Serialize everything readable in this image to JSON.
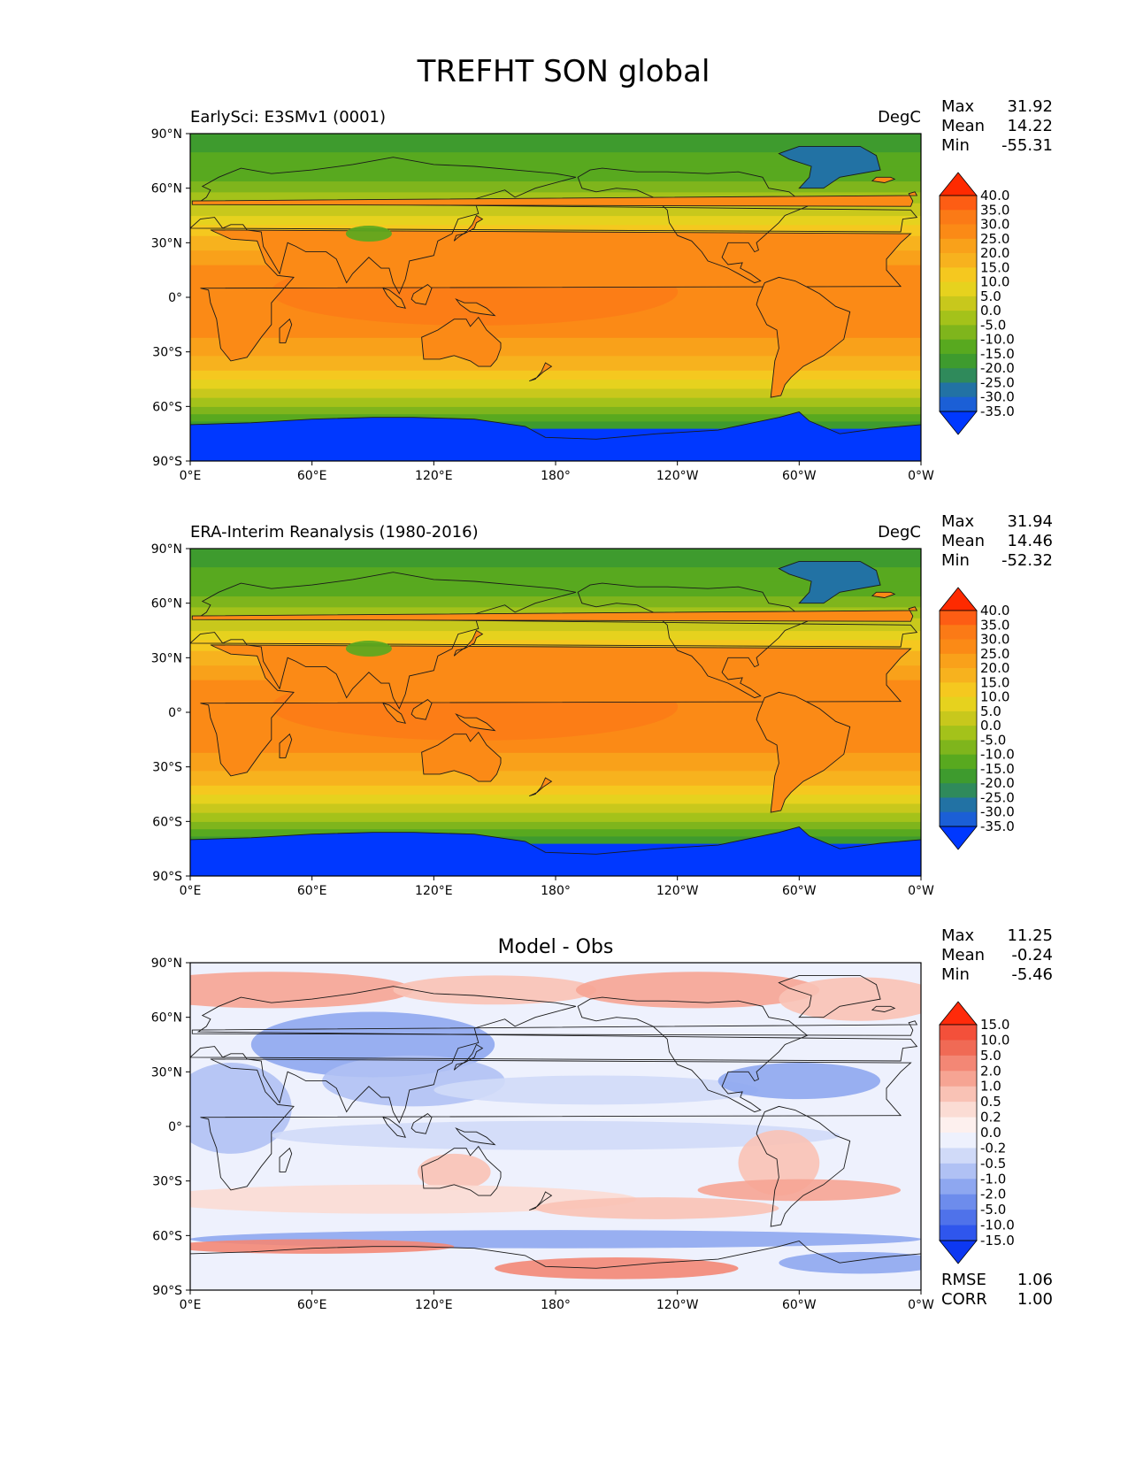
{
  "figure_title": "TREFHT SON global",
  "axes": {
    "lat_ticks": [
      "90°N",
      "60°N",
      "30°N",
      "0°",
      "30°S",
      "60°S",
      "90°S"
    ],
    "lon_ticks": [
      "0°E",
      "60°E",
      "120°E",
      "180°",
      "120°W",
      "60°W",
      "0°W"
    ]
  },
  "panels": [
    {
      "left_title": "EarlySci: E3SMv1 (0001)",
      "right_title": "DegC",
      "center_title": "",
      "stats": [
        {
          "label": "Max",
          "value": "31.92"
        },
        {
          "label": "Mean",
          "value": "14.22"
        },
        {
          "label": "Min",
          "value": "-55.31"
        }
      ]
    },
    {
      "left_title": "ERA-Interim Reanalysis (1980-2016)",
      "right_title": "DegC",
      "center_title": "",
      "stats": [
        {
          "label": "Max",
          "value": "31.94"
        },
        {
          "label": "Mean",
          "value": "14.46"
        },
        {
          "label": "Min",
          "value": "-52.32"
        }
      ]
    },
    {
      "left_title": "",
      "right_title": "",
      "center_title": "Model - Obs",
      "stats": [
        {
          "label": "Max",
          "value": "11.25"
        },
        {
          "label": "Mean",
          "value": "-0.24"
        },
        {
          "label": "Min",
          "value": "-5.46"
        }
      ],
      "extra_stats": [
        {
          "label": "RMSE",
          "value": "1.06"
        },
        {
          "label": "CORR",
          "value": "1.00"
        }
      ]
    }
  ],
  "chart_data": [
    {
      "type": "heatmap",
      "title": "EarlySci: E3SMv1 (0001)",
      "units": "DegC",
      "variable": "TREFHT",
      "season": "SON",
      "x_range": [
        0,
        360
      ],
      "y_range": [
        -90,
        90
      ],
      "colorbar": {
        "levels": [
          "40.0",
          "35.0",
          "30.0",
          "25.0",
          "20.0",
          "15.0",
          "10.0",
          "5.0",
          "0.0",
          "-5.0",
          "-10.0",
          "-15.0",
          "-20.0",
          "-25.0",
          "-30.0",
          "-35.0"
        ],
        "colors": [
          "#fe2a00",
          "#fd5d14",
          "#fb7a16",
          "#fb8a16",
          "#f9a11a",
          "#f7b21e",
          "#f5c81f",
          "#e6d21e",
          "#c8c81c",
          "#a4c21a",
          "#7fb51c",
          "#58a91f",
          "#3e9b2e",
          "#2f8a5b",
          "#2272a4",
          "#1b5fd6",
          "#0038ff"
        ],
        "extend": "both"
      },
      "stats": {
        "max": 31.92,
        "mean": 14.22,
        "min": -55.31
      }
    },
    {
      "type": "heatmap",
      "title": "ERA-Interim Reanalysis (1980-2016)",
      "units": "DegC",
      "variable": "TREFHT",
      "season": "SON",
      "x_range": [
        0,
        360
      ],
      "y_range": [
        -90,
        90
      ],
      "colorbar": {
        "levels": [
          "40.0",
          "35.0",
          "30.0",
          "25.0",
          "20.0",
          "15.0",
          "10.0",
          "5.0",
          "0.0",
          "-5.0",
          "-10.0",
          "-15.0",
          "-20.0",
          "-25.0",
          "-30.0",
          "-35.0"
        ],
        "colors": [
          "#fe2a00",
          "#fd5d14",
          "#fb7a16",
          "#fb8a16",
          "#f9a11a",
          "#f7b21e",
          "#f5c81f",
          "#e6d21e",
          "#c8c81c",
          "#a4c21a",
          "#7fb51c",
          "#58a91f",
          "#3e9b2e",
          "#2f8a5b",
          "#2272a4",
          "#1b5fd6",
          "#0038ff"
        ],
        "extend": "both"
      },
      "stats": {
        "max": 31.94,
        "mean": 14.46,
        "min": -52.32
      }
    },
    {
      "type": "heatmap",
      "title": "Model - Obs",
      "x_range": [
        0,
        360
      ],
      "y_range": [
        -90,
        90
      ],
      "colorbar": {
        "levels": [
          "15.0",
          "10.0",
          "5.0",
          "2.0",
          "1.0",
          "0.5",
          "0.2",
          "0.0",
          "-0.2",
          "-0.5",
          "-1.0",
          "-2.0",
          "-5.0",
          "-10.0",
          "-15.0"
        ],
        "colors": [
          "#ff2a0a",
          "#f3503a",
          "#f06a55",
          "#f38775",
          "#f6a493",
          "#f9c2b5",
          "#fbdcd4",
          "#fdf0ee",
          "#eef1fd",
          "#d0daf8",
          "#b0c1f4",
          "#8ea7f0",
          "#6d8cec",
          "#4f72ea",
          "#2f56ed",
          "#0d38f2"
        ],
        "extend": "both"
      },
      "stats": {
        "max": 11.25,
        "mean": -0.24,
        "min": -5.46,
        "rmse": 1.06,
        "corr": 1.0
      }
    }
  ]
}
